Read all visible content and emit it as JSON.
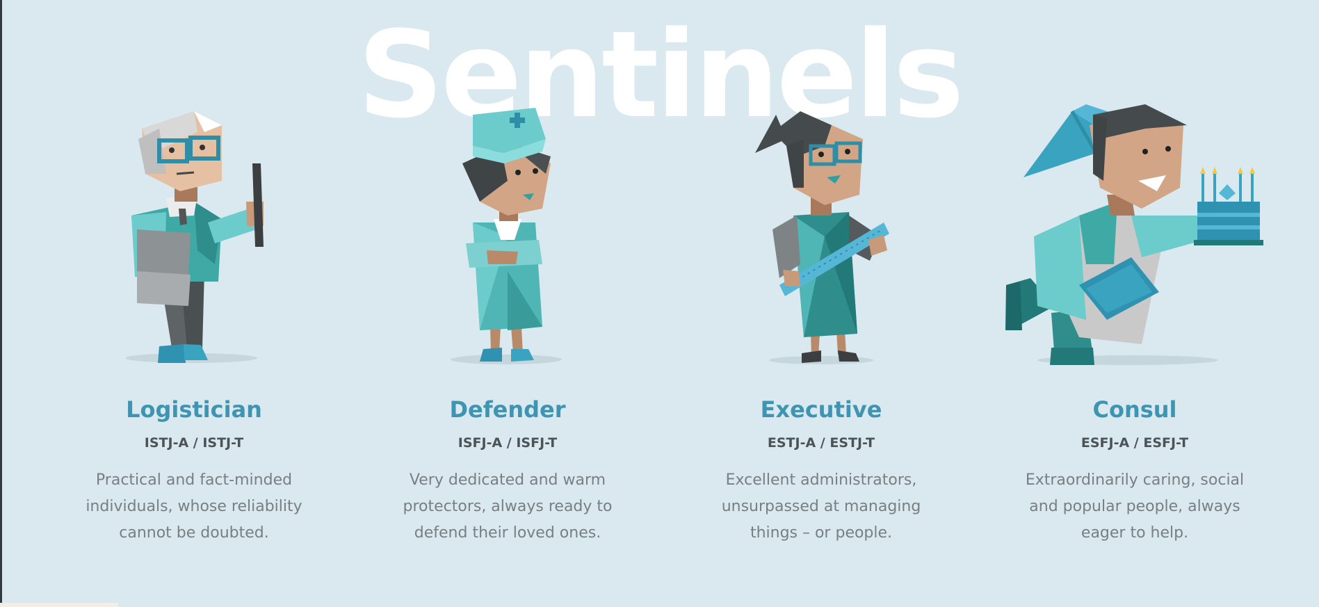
{
  "section": {
    "title": "Sentinels"
  },
  "personalities": [
    {
      "name": "Logistician",
      "codes": "ISTJ-A / ISTJ-T",
      "description": "Practical and fact-minded individuals, whose reliability cannot be doubted.",
      "illustration_icon": "logistician-figure-icon"
    },
    {
      "name": "Defender",
      "codes": "ISFJ-A / ISFJ-T",
      "description": "Very dedicated and warm protectors, always ready to defend their loved ones.",
      "illustration_icon": "defender-nurse-figure-icon"
    },
    {
      "name": "Executive",
      "codes": "ESTJ-A / ESTJ-T",
      "description": "Excellent administrators, unsurpassed at managing things – or people.",
      "illustration_icon": "executive-ruler-figure-icon"
    },
    {
      "name": "Consul",
      "codes": "ESFJ-A / ESFJ-T",
      "description": "Extraordinarily caring, social and popular people, always eager to help.",
      "illustration_icon": "consul-cake-figure-icon"
    }
  ],
  "colors": {
    "background": "#d9e9ef",
    "accent": "#3f95b1",
    "teal": "#4fb5b5",
    "title": "#ffffff",
    "code_text": "#4b5357",
    "body_text": "#787f82"
  }
}
